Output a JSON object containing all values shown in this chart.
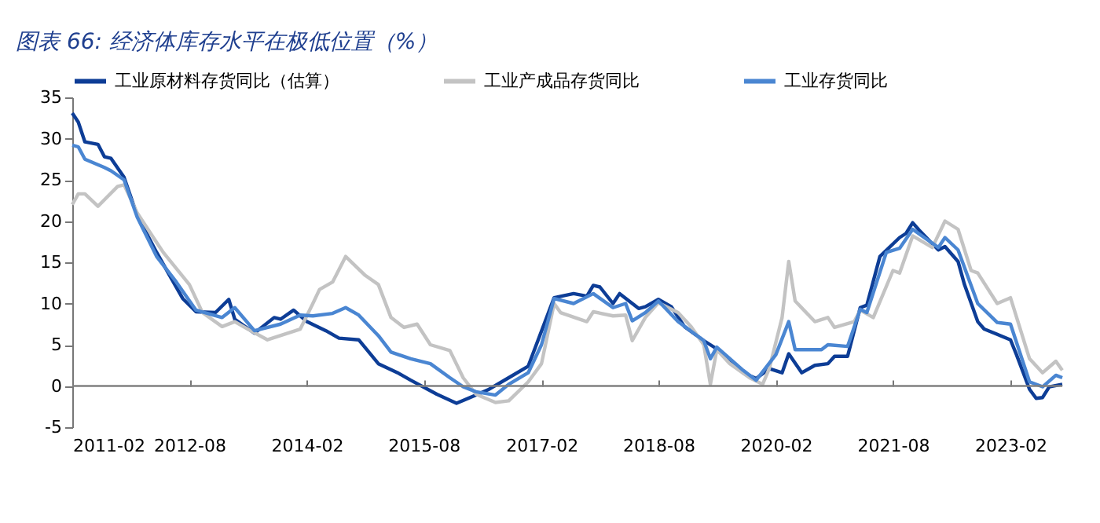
{
  "chart_data": {
    "type": "line",
    "title": "图表 66: 经济体库存水平在极低位置（%）",
    "xlim": [
      "2011-02",
      "2023-10"
    ],
    "xticks": [
      "2011-02",
      "2012-08",
      "2014-02",
      "2015-08",
      "2017-02",
      "2018-08",
      "2020-02",
      "2021-08",
      "2023-02"
    ],
    "ylim": [
      -5,
      35
    ],
    "yticks": [
      -5,
      0,
      5,
      10,
      15,
      20,
      25,
      30,
      35
    ],
    "grid": false,
    "legend": "top",
    "ref_lines": [
      {
        "axis": "y",
        "value": 0,
        "color": "#808080"
      }
    ],
    "series": [
      {
        "name": "工业原材料存货同比（估算）",
        "color": "#0d3d96",
        "x": [
          "2011-02",
          "2011-03",
          "2011-04",
          "2011-06",
          "2011-07",
          "2011-08",
          "2011-10",
          "2011-12",
          "2012-03",
          "2012-05",
          "2012-07",
          "2012-09",
          "2012-12",
          "2013-02",
          "2013-03",
          "2013-06",
          "2013-09",
          "2013-10",
          "2013-12",
          "2014-02",
          "2014-05",
          "2014-07",
          "2014-10",
          "2015-01",
          "2015-04",
          "2015-06",
          "2015-10",
          "2016-01",
          "2016-04",
          "2016-06",
          "2016-09",
          "2016-12",
          "2017-04",
          "2017-07",
          "2017-09",
          "2017-10",
          "2017-11",
          "2018-01",
          "2018-02",
          "2018-05",
          "2018-06",
          "2018-08",
          "2018-10",
          "2018-12",
          "2019-03",
          "2019-05",
          "2019-09",
          "2019-11",
          "2020-01",
          "2020-03",
          "2020-04",
          "2020-06",
          "2020-08",
          "2020-10",
          "2020-11",
          "2021-01",
          "2021-03",
          "2021-04",
          "2021-06",
          "2021-09",
          "2021-10",
          "2021-11",
          "2021-12",
          "2022-03",
          "2022-04",
          "2022-06",
          "2022-07",
          "2022-09",
          "2022-10",
          "2023-02",
          "2023-03",
          "2023-05",
          "2023-06",
          "2023-07",
          "2023-08",
          "2023-10"
        ],
        "values": [
          33.1,
          32,
          29.6,
          29.3,
          27.8,
          27.6,
          25.3,
          20.7,
          16.2,
          13.4,
          10.6,
          9.0,
          8.9,
          10.5,
          8.1,
          6.4,
          8.3,
          8.1,
          9.2,
          7.8,
          6.7,
          5.8,
          5.6,
          2.7,
          1.6,
          0.7,
          -1,
          -2.1,
          -1.1,
          -0.4,
          1.0,
          2.4,
          10.7,
          11.2,
          10.9,
          12.2,
          12,
          10,
          11.2,
          9.4,
          9.6,
          10.5,
          9.6,
          7.2,
          5.5,
          4.5,
          1.6,
          0.9,
          2.1,
          1.6,
          3.9,
          1.6,
          2.5,
          2.7,
          3.6,
          3.6,
          9.5,
          9.8,
          15.7,
          18,
          18.5,
          19.8,
          18.9,
          16.5,
          16.9,
          15.1,
          12.3,
          7.8,
          6.9,
          5.6,
          3.8,
          -0.4,
          -1.5,
          -1.4,
          -0.1,
          0.2
        ]
      },
      {
        "name": "工业产成品存货同比",
        "color": "#c3c3c3",
        "x": [
          "2011-02",
          "2011-03",
          "2011-04",
          "2011-06",
          "2011-09",
          "2011-10",
          "2011-12",
          "2012-03",
          "2012-04",
          "2012-08",
          "2012-10",
          "2013-01",
          "2013-03",
          "2013-05",
          "2013-08",
          "2014-01",
          "2014-03",
          "2014-04",
          "2014-06",
          "2014-08",
          "2014-11",
          "2015-01",
          "2015-03",
          "2015-05",
          "2015-07",
          "2015-09",
          "2015-12",
          "2016-02",
          "2016-04",
          "2016-07",
          "2016-09",
          "2016-12",
          "2017-02",
          "2017-04",
          "2017-05",
          "2017-09",
          "2017-10",
          "2018-01",
          "2018-03",
          "2018-04",
          "2018-06",
          "2018-08",
          "2018-11",
          "2019-01",
          "2019-03",
          "2019-04",
          "2019-05",
          "2019-07",
          "2019-10",
          "2019-12",
          "2020-01",
          "2020-03",
          "2020-04",
          "2020-05",
          "2020-08",
          "2020-10",
          "2020-11",
          "2021-02",
          "2021-03",
          "2021-05",
          "2021-08",
          "2021-09",
          "2021-11",
          "2022-02",
          "2022-04",
          "2022-06",
          "2022-08",
          "2022-09",
          "2022-12",
          "2023-02",
          "2023-05",
          "2023-07",
          "2023-09",
          "2023-10"
        ],
        "values": [
          22.0,
          23.3,
          23.3,
          21.8,
          24.2,
          24.4,
          21,
          17.4,
          16.2,
          12.3,
          8.9,
          7.2,
          7.8,
          6.9,
          5.6,
          6.9,
          10,
          11.7,
          12.6,
          15.7,
          13.4,
          12.3,
          8.3,
          7.1,
          7.5,
          5.0,
          4.3,
          1.0,
          -1,
          -2.0,
          -1.8,
          0.5,
          2.7,
          10,
          8.9,
          7.8,
          9.0,
          8.5,
          8.6,
          5.5,
          8.3,
          10.1,
          8.9,
          7.2,
          5.0,
          0.2,
          4.4,
          2.7,
          1.0,
          0.2,
          2.1,
          8.3,
          15.1,
          10.3,
          7.8,
          8.3,
          7.1,
          7.8,
          9.2,
          8.3,
          14,
          13.7,
          18.2,
          16.8,
          20,
          19,
          14,
          13.7,
          10,
          10.7,
          3.3,
          1.6,
          3.0,
          1.9
        ]
      },
      {
        "name": "工业存货同比",
        "color": "#4a86d2",
        "x": [
          "2011-02",
          "2011-03",
          "2011-04",
          "2011-07",
          "2011-08",
          "2011-10",
          "2011-12",
          "2012-03",
          "2012-06",
          "2012-09",
          "2013-01",
          "2013-03",
          "2013-06",
          "2013-10",
          "2014-01",
          "2014-03",
          "2014-06",
          "2014-08",
          "2014-10",
          "2015-01",
          "2015-03",
          "2015-06",
          "2015-09",
          "2015-12",
          "2016-02",
          "2016-04",
          "2016-07",
          "2016-09",
          "2016-12",
          "2017-02",
          "2017-04",
          "2017-07",
          "2017-10",
          "2018-01",
          "2018-03",
          "2018-04",
          "2018-06",
          "2018-08",
          "2018-11",
          "2019-03",
          "2019-04",
          "2019-05",
          "2019-09",
          "2019-11",
          "2020-02",
          "2020-04",
          "2020-05",
          "2020-09",
          "2020-10",
          "2021-01",
          "2021-03",
          "2021-04",
          "2021-07",
          "2021-09",
          "2021-11",
          "2022-03",
          "2022-04",
          "2022-06",
          "2022-09",
          "2022-12",
          "2023-02",
          "2023-05",
          "2023-07",
          "2023-09",
          "2023-10"
        ],
        "values": [
          29.2,
          29,
          27.5,
          26.5,
          26.1,
          25,
          20.5,
          15.7,
          12.6,
          9.2,
          8.3,
          9.5,
          6.7,
          7.5,
          8.6,
          8.5,
          8.8,
          9.5,
          8.6,
          6.1,
          4.1,
          3.3,
          2.7,
          1.0,
          -0.1,
          -0.7,
          -1.1,
          0.2,
          1.6,
          5,
          10.6,
          10.0,
          11.2,
          9.5,
          10,
          7.9,
          8.9,
          10.3,
          7.8,
          5.5,
          3.3,
          4.7,
          1.9,
          0.7,
          3.8,
          7.8,
          4.4,
          4.4,
          5.0,
          4.8,
          9.3,
          8.9,
          16.2,
          16.7,
          19,
          16.8,
          18,
          16.5,
          10,
          7.7,
          7.5,
          0.5,
          -0.1,
          1.3,
          1.0
        ]
      }
    ]
  }
}
